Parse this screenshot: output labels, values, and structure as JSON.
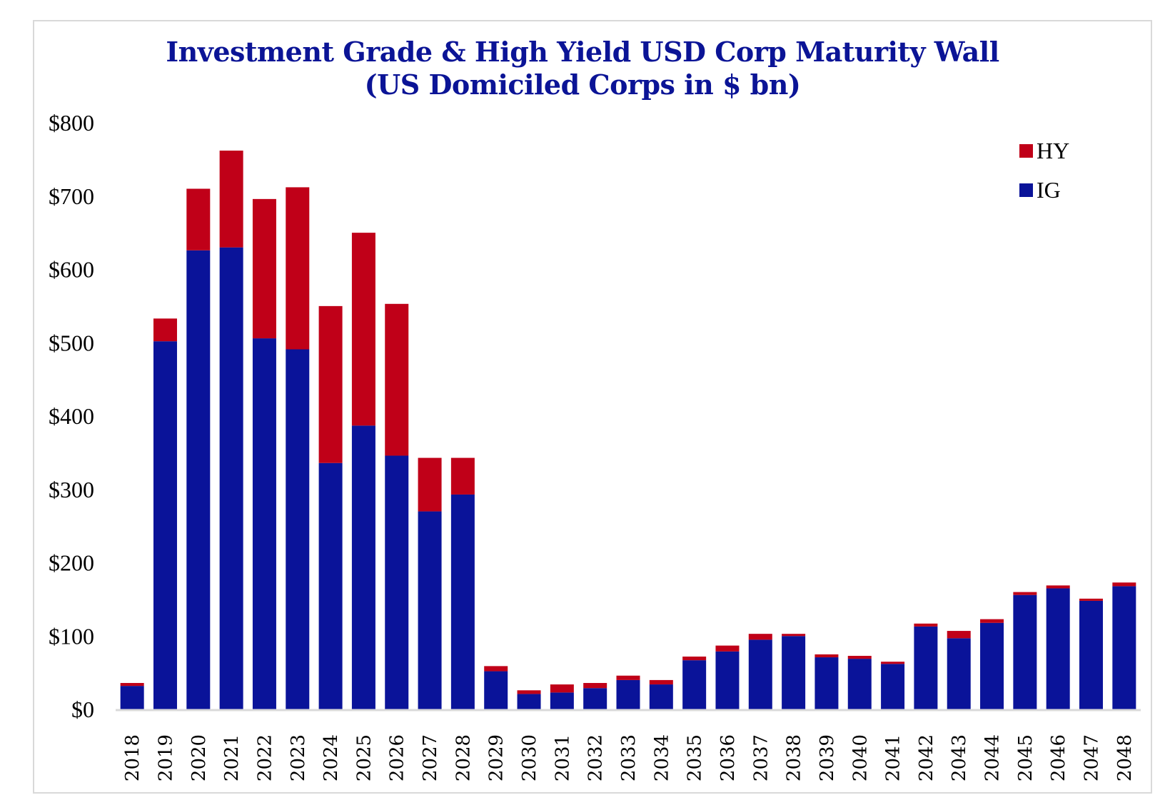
{
  "chart_data": {
    "type": "bar",
    "stacked": true,
    "title": "Investment Grade & High Yield USD Corp Maturity Wall",
    "subtitle": "(US Domiciled Corps in $ bn)",
    "xlabel": "",
    "ylabel": "",
    "ylim": [
      0,
      800
    ],
    "yticks": [
      0,
      100,
      200,
      300,
      400,
      500,
      600,
      700,
      800
    ],
    "ytick_labels": [
      "$0",
      "$100",
      "$200",
      "$300",
      "$400",
      "$500",
      "$600",
      "$700",
      "$800"
    ],
    "grid": false,
    "legend_position": "top-right",
    "categories": [
      "2018",
      "2019",
      "2020",
      "2021",
      "2022",
      "2023",
      "2024",
      "2025",
      "2026",
      "2027",
      "2028",
      "2029",
      "2030",
      "2031",
      "2032",
      "2033",
      "2034",
      "2035",
      "2036",
      "2037",
      "2038",
      "2039",
      "2040",
      "2041",
      "2042",
      "2043",
      "2044",
      "2045",
      "2046",
      "2047",
      "2048"
    ],
    "series": [
      {
        "name": "IG",
        "color": "#0a1399",
        "values": [
          32,
          502,
          626,
          630,
          506,
          491,
          336,
          387,
          346,
          270,
          293,
          52,
          21,
          23,
          29,
          40,
          34,
          67,
          79,
          95,
          100,
          71,
          69,
          62,
          113,
          97,
          118,
          156,
          165,
          148,
          168
        ]
      },
      {
        "name": "HY",
        "color": "#c00018",
        "values": [
          4,
          31,
          84,
          132,
          190,
          221,
          214,
          263,
          207,
          73,
          50,
          7,
          5,
          11,
          7,
          6,
          6,
          5,
          8,
          8,
          3,
          4,
          4,
          3,
          4,
          10,
          5,
          4,
          4,
          3,
          5
        ]
      }
    ],
    "legend": [
      {
        "name": "HY",
        "color": "#c00018"
      },
      {
        "name": "IG",
        "color": "#0a1399"
      }
    ]
  }
}
